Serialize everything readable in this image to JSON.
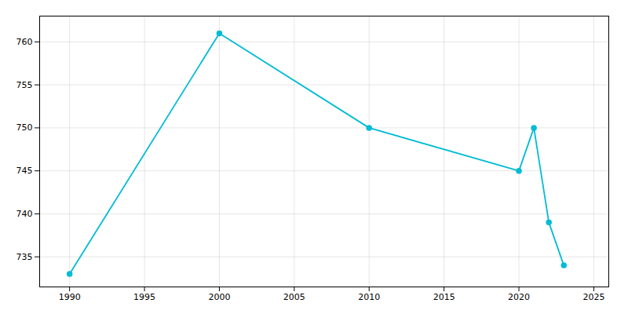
{
  "chart_data": {
    "type": "line",
    "x": [
      1990,
      2000,
      2010,
      2020,
      2021,
      2022,
      2023
    ],
    "values": [
      733,
      761,
      750,
      745,
      750,
      739,
      734
    ],
    "color": "#00BCD4",
    "marker": "circle",
    "xlim": [
      1988,
      2026
    ],
    "ylim": [
      731.5,
      763
    ],
    "xticks": [
      1990,
      1995,
      2000,
      2005,
      2010,
      2015,
      2020,
      2025
    ],
    "yticks": [
      735,
      740,
      745,
      750,
      755,
      760
    ],
    "grid": true
  }
}
